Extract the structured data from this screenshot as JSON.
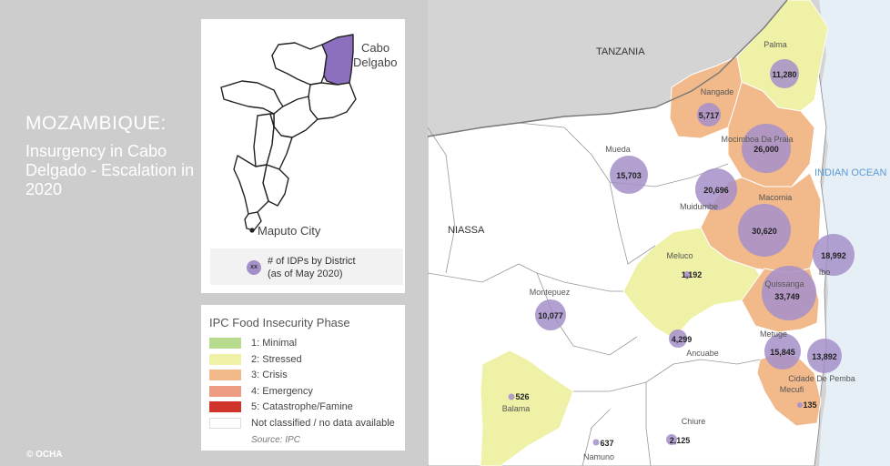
{
  "title": "MOZAMBIQUE:",
  "subtitle": "Insurgency in Cabo Delgado - Escalation in 2020",
  "credit": "© OCHA",
  "inset": {
    "region_label_1": "Cabo",
    "region_label_2": "Delgabo",
    "city_label": "Maputo City",
    "legend_symbol": "xx",
    "legend_line1": "# of IDPs by District",
    "legend_line2": "(as of May 2020)",
    "highlight_color": "#8d6fc0"
  },
  "ipc_legend": {
    "title": "IPC Food Insecurity Phase",
    "phases": [
      {
        "label": "1: Minimal",
        "color": "#b7dc8e"
      },
      {
        "label": "2: Stressed",
        "color": "#eef1a6"
      },
      {
        "label": "3: Crisis",
        "color": "#f2b98a"
      },
      {
        "label": "4: Emergency",
        "color": "#ec9c82"
      },
      {
        "label": "5: Catastrophe/Famine",
        "color": "#d0342a"
      },
      {
        "label": "Not classified / no data available",
        "color": "#ffffff"
      }
    ],
    "source": "Source: IPC"
  },
  "map": {
    "countries": {
      "tanzania": "TANZANIA",
      "niassa": "NIASSA",
      "ocean": "INDIAN OCEAN"
    },
    "districts": [
      {
        "name": "Palma",
        "idps": "11,280",
        "phase": 2
      },
      {
        "name": "Nangade",
        "idps": "5,717",
        "phase": 3
      },
      {
        "name": "Mocimboa Da Praia",
        "idps": "26,000",
        "phase": 3
      },
      {
        "name": "Mueda",
        "idps": "15,703",
        "phase": 0
      },
      {
        "name": "Muidumbe",
        "idps": "20,696",
        "phase": 0
      },
      {
        "name": "Macomia",
        "idps": "30,620",
        "phase": 3
      },
      {
        "name": "Ibo",
        "idps": "18,992",
        "phase": 0
      },
      {
        "name": "Meluco",
        "idps": "1,192",
        "phase": 2
      },
      {
        "name": "Quissanga",
        "idps": "33,749",
        "phase": 3
      },
      {
        "name": "Montepuez",
        "idps": "10,077",
        "phase": 0
      },
      {
        "name": "Ancuabe",
        "idps": "4,299",
        "phase": 0
      },
      {
        "name": "Metuge",
        "idps": "15,845",
        "phase": 3
      },
      {
        "name": "Cidade De Pemba",
        "idps": "13,892",
        "phase": 0
      },
      {
        "name": "Mecufi",
        "idps": "135",
        "phase": 3
      },
      {
        "name": "Balama",
        "idps": "526",
        "phase": 2
      },
      {
        "name": "Chiure",
        "idps": "2,125",
        "phase": 0
      },
      {
        "name": "Namuno",
        "idps": "637",
        "phase": 0
      }
    ]
  }
}
